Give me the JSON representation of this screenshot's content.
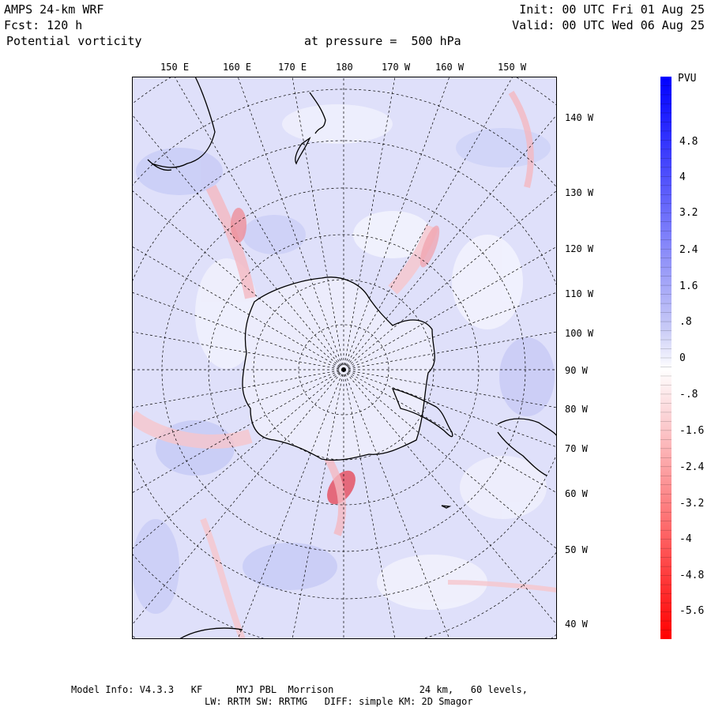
{
  "header": {
    "model": "AMPS 24-km WRF",
    "forecast": "Fcst: 120 h",
    "variable": "Potential vorticity",
    "level": "at pressure =  500 hPa",
    "init": "Init: 00 UTC Fri 01 Aug 25",
    "valid": "Valid: 00 UTC Wed 06 Aug 25"
  },
  "map": {
    "top_longitudes": [
      "150 E",
      "160 E",
      "170 E",
      "180",
      "170 W",
      "160 W",
      "150 W"
    ],
    "right_longitudes": [
      "140 W",
      "130 W",
      "120 W",
      "110 W",
      "100 W",
      "90 W",
      "80 W",
      "70 W",
      "60 W",
      "50 W",
      "40 W"
    ]
  },
  "colorbar": {
    "unit": "PVU",
    "ticks": [
      "4.8",
      "4",
      "3.2",
      "2.4",
      "1.6",
      ".8",
      "0",
      "-.8",
      "-1.6",
      "-2.4",
      "-3.2",
      "-4",
      "-4.8",
      "-5.6"
    ],
    "positive_color": "#0000ff",
    "negative_color": "#ff0000"
  },
  "footer": {
    "line1": "Model Info: V4.3.3   KF      MYJ PBL  Morrison               24 km,   60 levels,",
    "line2": "LW: RRTM SW: RRTMG   DIFF: simple KM: 2D Smagor"
  }
}
